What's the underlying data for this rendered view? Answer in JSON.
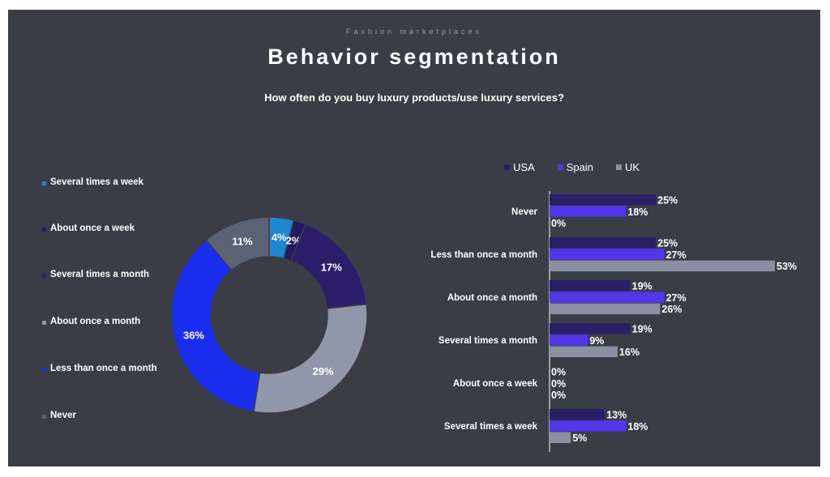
{
  "header": {
    "kicker": "Fashion marketplaces",
    "title": "Behavior segmentation",
    "question": "How often do you buy luxury products/use luxury services?"
  },
  "colors": {
    "background": "#3a3d45",
    "several_times_week": "#1f86d0",
    "about_once_week": "#241b5e",
    "several_times_month": "#2c1d6b",
    "about_once_month": "#8f97a8",
    "less_than_once_month": "#1a2ef0",
    "never": "#5b6273",
    "usa": "#2a1f66",
    "spain": "#5236e8",
    "uk": "#8a90a2"
  },
  "chart_data": [
    {
      "type": "pie",
      "variant": "donut",
      "legend_position": "left",
      "slices": [
        {
          "label": "Several times a week",
          "value": 4,
          "display": "4%",
          "color": "#1f86d0"
        },
        {
          "label": "About once a week",
          "value": 2,
          "display": "2%",
          "color": "#241b5e"
        },
        {
          "label": "Several times a month",
          "value": 17,
          "display": "17%",
          "color": "#2c1d6b"
        },
        {
          "label": "About once a month",
          "value": 29,
          "display": "29%",
          "color": "#8f97a8"
        },
        {
          "label": "Less than once a month",
          "value": 36,
          "display": "36%",
          "color": "#1a2ef0"
        },
        {
          "label": "Never",
          "value": 11,
          "display": "11%",
          "color": "#5b6273"
        }
      ]
    },
    {
      "type": "bar",
      "orientation": "horizontal",
      "legend_position": "top",
      "categories": [
        "Never",
        "Less than once a month",
        "About once a month",
        "Several times a month",
        "About once a week",
        "Several times a week"
      ],
      "series": [
        {
          "name": "USA",
          "color": "#2a1f66",
          "values": [
            25,
            25,
            19,
            19,
            0,
            13
          ],
          "labels": [
            "25%",
            "25%",
            "19%",
            "19%",
            "0%",
            "13%"
          ]
        },
        {
          "name": "Spain",
          "color": "#5236e8",
          "values": [
            18,
            27,
            27,
            9,
            0,
            18
          ],
          "labels": [
            "18%",
            "27%",
            "27%",
            "9%",
            "0%",
            "18%"
          ]
        },
        {
          "name": "UK",
          "color": "#8a90a2",
          "values": [
            0,
            53,
            26,
            16,
            0,
            5
          ],
          "labels": [
            "0%",
            "53%",
            "26%",
            "16%",
            "0%",
            "5%"
          ]
        }
      ],
      "xlim": [
        0,
        53
      ]
    }
  ]
}
